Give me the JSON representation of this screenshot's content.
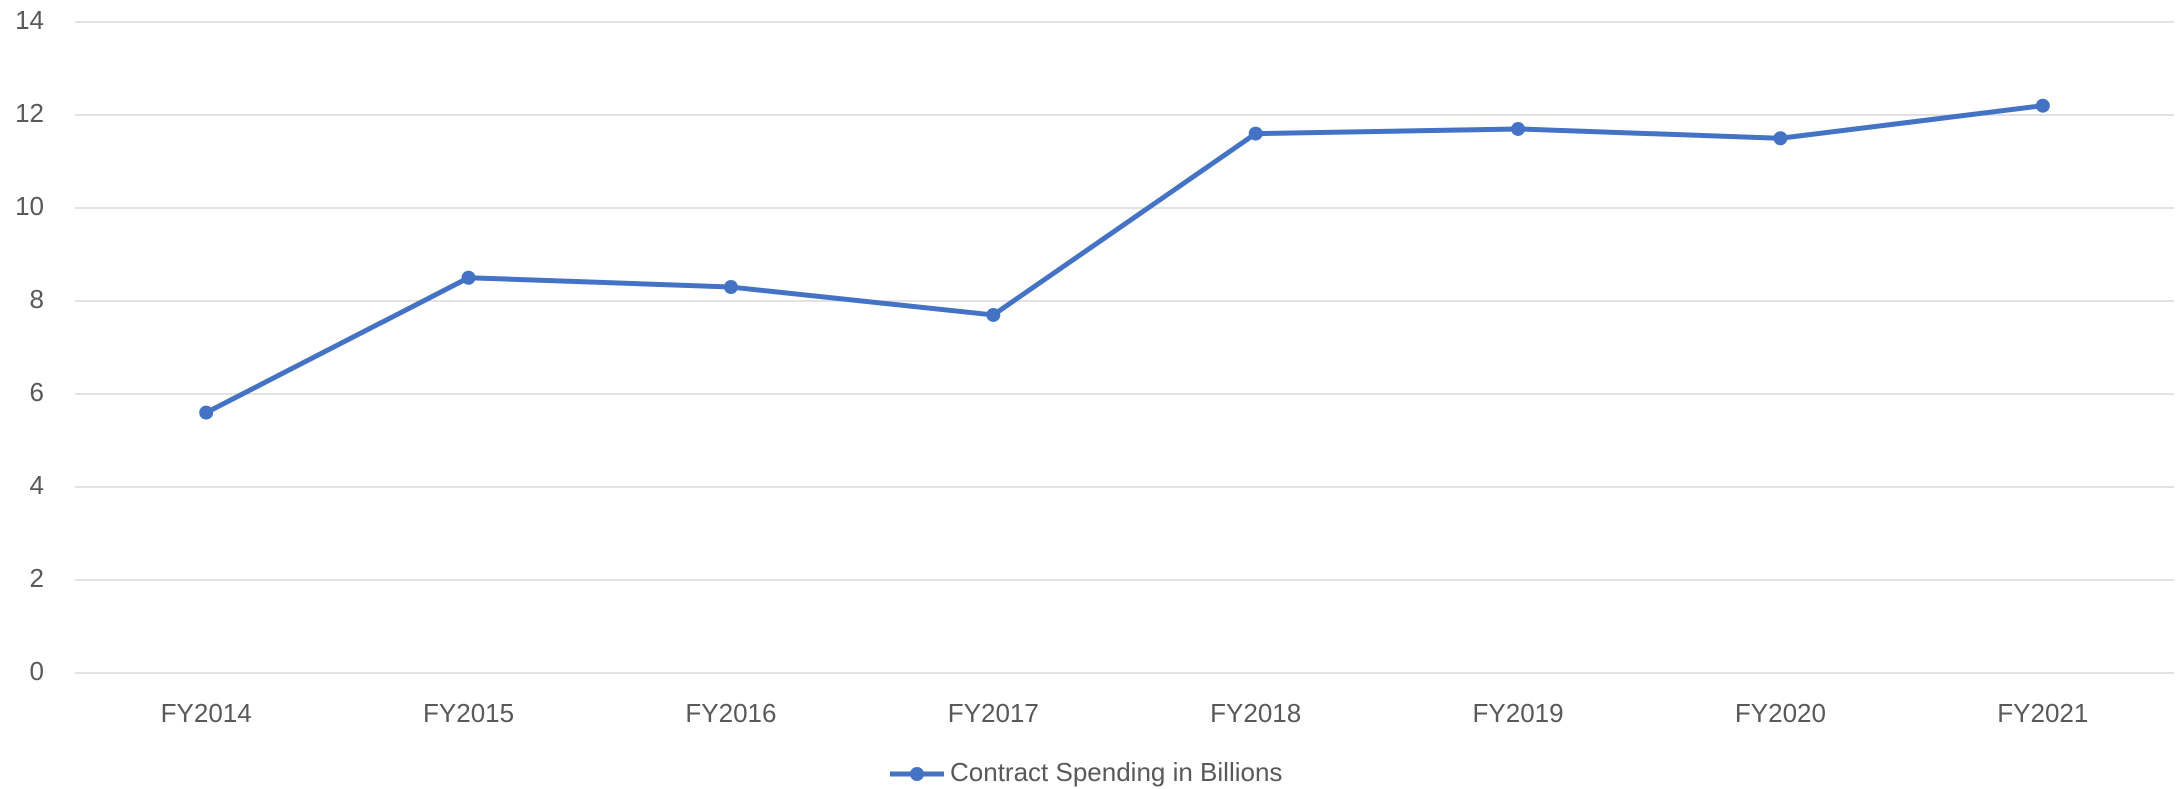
{
  "chart_data": {
    "type": "line",
    "categories": [
      "FY2014",
      "FY2015",
      "FY2016",
      "FY2017",
      "FY2018",
      "FY2019",
      "FY2020",
      "FY2021"
    ],
    "series": [
      {
        "name": "Contract Spending in Billions",
        "color": "#4472c4",
        "values": [
          5.6,
          8.5,
          8.3,
          7.7,
          11.6,
          11.7,
          11.5,
          12.2
        ]
      }
    ],
    "ylim": [
      0,
      14
    ],
    "yticks": [
      0,
      2,
      4,
      6,
      8,
      10,
      12,
      14
    ],
    "grid": true,
    "legend": "bottom"
  }
}
